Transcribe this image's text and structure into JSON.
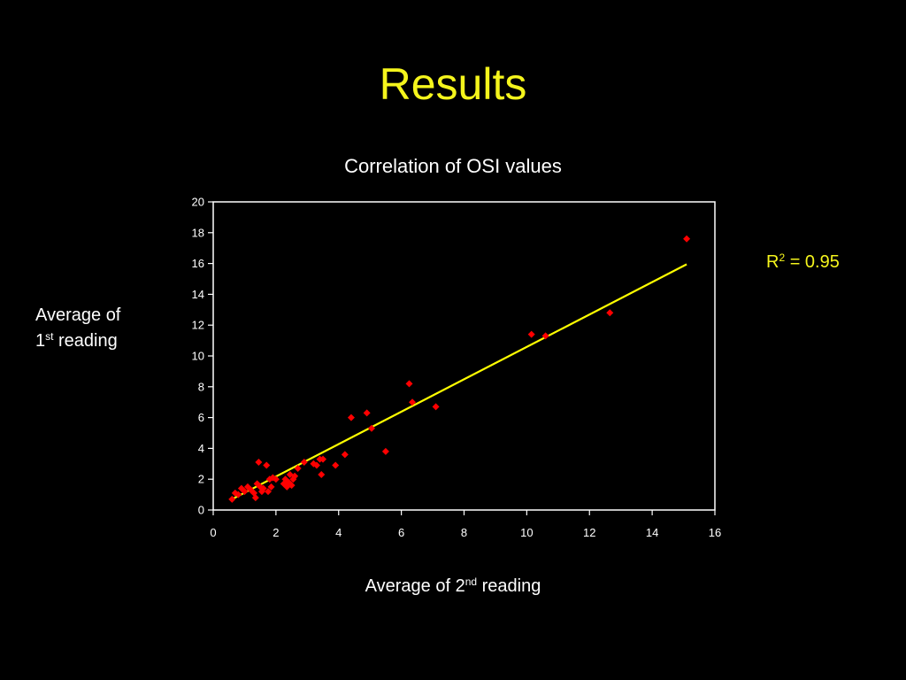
{
  "slide": {
    "title": "Results"
  },
  "annotation": {
    "r2_prefix": "R",
    "r2_sup": "2",
    "r2_suffix": " = 0.95"
  },
  "chart_data": {
    "type": "scatter",
    "title": "Correlation of OSI values",
    "ylabel_line1": "Average of",
    "ylabel_pre": "1",
    "ylabel_sup": "st",
    "ylabel_post": " reading",
    "xlabel_pre": "Average of 2",
    "xlabel_sup": "nd",
    "xlabel_post": " reading",
    "xlim": [
      0,
      16
    ],
    "ylim": [
      0,
      20
    ],
    "xticks": [
      0,
      2,
      4,
      6,
      8,
      10,
      12,
      14,
      16
    ],
    "yticks": [
      0,
      2,
      4,
      6,
      8,
      10,
      12,
      14,
      16,
      18,
      20
    ],
    "grid": false,
    "colors": {
      "points": "#ff0000",
      "trendline": "#ffff00",
      "title": "#f5f51c",
      "background": "#000000",
      "plot_area": "#ffffff"
    },
    "series": [
      {
        "marker": "diamond",
        "x": [
          0.6,
          0.7,
          0.8,
          0.9,
          1.0,
          1.1,
          1.2,
          1.3,
          1.35,
          1.4,
          1.45,
          1.5,
          1.55,
          1.6,
          1.7,
          1.75,
          1.8,
          1.85,
          1.9,
          2.0,
          2.25,
          2.3,
          2.35,
          2.4,
          2.45,
          2.5,
          2.55,
          2.6,
          2.7,
          2.9,
          3.2,
          3.3,
          3.4,
          3.45,
          3.5,
          3.9,
          4.2,
          4.4,
          4.9,
          5.05,
          5.5,
          6.25,
          6.35,
          7.1,
          10.15,
          10.6,
          12.65,
          15.1
        ],
        "y": [
          0.7,
          1.1,
          1.0,
          1.4,
          1.2,
          1.5,
          1.3,
          1.1,
          0.8,
          1.7,
          3.1,
          1.5,
          1.2,
          1.4,
          2.9,
          1.2,
          2.0,
          1.5,
          2.1,
          2.0,
          1.7,
          2.0,
          1.5,
          1.8,
          2.3,
          1.6,
          2.0,
          2.2,
          2.7,
          3.1,
          3.0,
          2.9,
          3.3,
          2.3,
          3.3,
          2.9,
          3.6,
          6.0,
          6.3,
          5.3,
          3.8,
          8.2,
          7.0,
          6.7,
          11.4,
          11.3,
          12.8,
          17.6
        ]
      }
    ],
    "trendline": {
      "x": [
        0.6,
        15.1
      ],
      "y": [
        0.7,
        15.95
      ]
    }
  }
}
